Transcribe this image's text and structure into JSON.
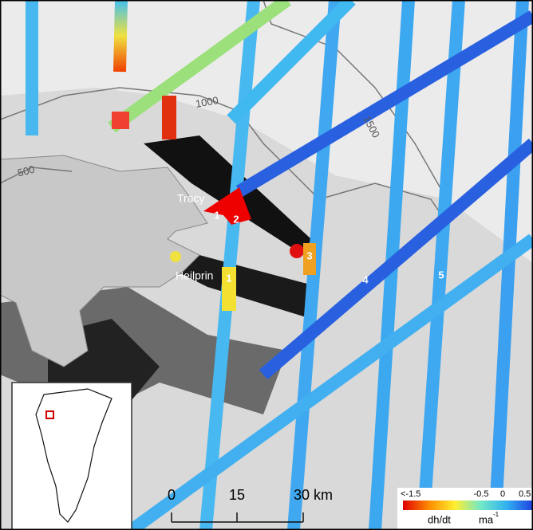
{
  "contours": [
    "1000",
    "1500",
    "500"
  ],
  "glaciers": [
    "Tracy",
    "Heilprin"
  ],
  "markers": [
    "1",
    "2",
    "3",
    "1",
    "4",
    "5"
  ],
  "scale_bar": {
    "ticks": [
      "0",
      "15",
      "30 km"
    ]
  },
  "colorbar": {
    "ticks": [
      "<-1.5",
      "-0.5",
      "0",
      "0.5"
    ],
    "label": "dh/dt",
    "unit": "ma",
    "unit_exponent": "-1"
  }
}
